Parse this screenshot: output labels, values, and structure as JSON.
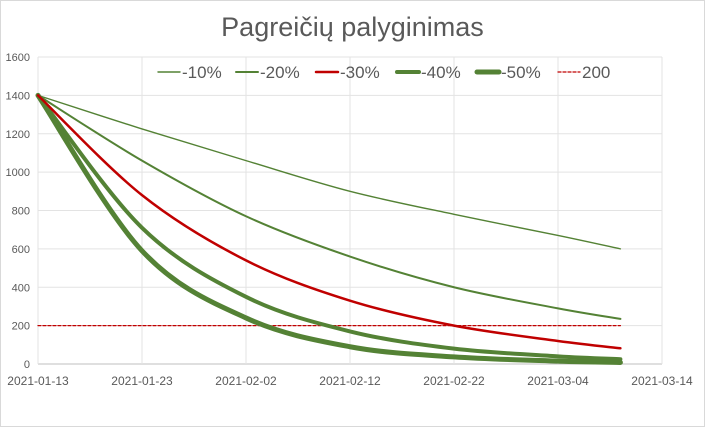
{
  "chart_data": {
    "type": "line",
    "title": "Pagreičių palyginimas",
    "xlabel": "",
    "ylabel": "",
    "ylim": [
      0,
      1600
    ],
    "y_ticks": [
      0,
      200,
      400,
      600,
      800,
      1000,
      1200,
      1400,
      1600
    ],
    "x_ticks": [
      "2021-01-13",
      "2021-01-23",
      "2021-02-02",
      "2021-02-12",
      "2021-02-22",
      "2021-03-04",
      "2021-03-14"
    ],
    "xlim": [
      "2021-01-13",
      "2021-03-14"
    ],
    "grid": true,
    "legend_position": "top",
    "x": [
      "2021-01-13",
      "2021-01-23",
      "2021-02-02",
      "2021-02-12",
      "2021-02-22",
      "2021-03-04",
      "2021-03-10"
    ],
    "series": [
      {
        "name": "-10%",
        "color": "#548235",
        "style": "thin",
        "values": [
          1400,
          1225,
          1060,
          900,
          780,
          670,
          600
        ]
      },
      {
        "name": "-20%",
        "color": "#548235",
        "style": "medium",
        "values": [
          1400,
          1060,
          770,
          560,
          400,
          290,
          235
        ]
      },
      {
        "name": "-30%",
        "color": "#c00000",
        "style": "red",
        "values": [
          1400,
          880,
          540,
          330,
          200,
          120,
          82
        ]
      },
      {
        "name": "-40%",
        "color": "#548235",
        "style": "thick",
        "values": [
          1400,
          710,
          350,
          170,
          80,
          40,
          25
        ]
      },
      {
        "name": "-50%",
        "color": "#548235",
        "style": "thicker",
        "values": [
          1400,
          590,
          240,
          90,
          37,
          15,
          8
        ]
      },
      {
        "name": "200",
        "color": "#c00000",
        "style": "dashed",
        "values": [
          200,
          200,
          200,
          200,
          200,
          200,
          200
        ]
      }
    ]
  }
}
